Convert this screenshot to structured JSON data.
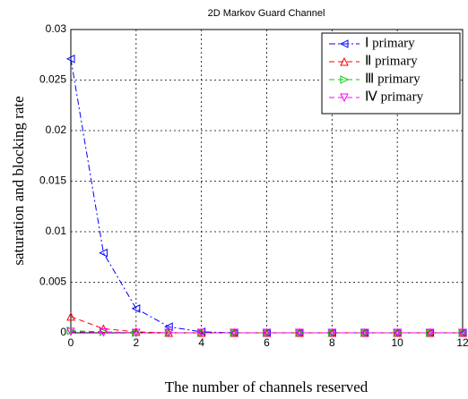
{
  "chart_data": {
    "type": "line",
    "title": "2D Markov Guard Channel",
    "xlabel": "The number of channels reserved",
    "ylabel": "saturation and blocking rate",
    "x": [
      0,
      1,
      2,
      3,
      4,
      5,
      6,
      7,
      8,
      9,
      10,
      11,
      12
    ],
    "series": [
      {
        "name": "Ⅰ primary",
        "color": "#0000ff",
        "marker": "left",
        "dash": "dashdot",
        "values": [
          0.0271,
          0.0079,
          0.0024,
          0.0006,
          0.0001,
          0,
          0,
          0,
          0,
          0,
          0,
          0,
          0
        ]
      },
      {
        "name": "Ⅱ primary",
        "color": "#ff0000",
        "marker": "up",
        "dash": "dashed",
        "values": [
          0.0016,
          0.0004,
          0.0001,
          0,
          0,
          0,
          0,
          0,
          0,
          0,
          0,
          0,
          0
        ]
      },
      {
        "name": "Ⅲ primary",
        "color": "#00cc00",
        "marker": "right",
        "dash": "dashed",
        "values": [
          0.0002,
          0.0001,
          0,
          0,
          0,
          0,
          0,
          0,
          0,
          0,
          0,
          0,
          0
        ]
      },
      {
        "name": "Ⅳ primary",
        "color": "#ff00ff",
        "marker": "down",
        "dash": "dashed",
        "values": [
          0.0001,
          5e-05,
          0,
          0,
          0,
          0,
          0,
          0,
          0,
          0,
          0,
          0,
          0
        ]
      }
    ],
    "xlim": [
      0,
      12
    ],
    "xticks": [
      0,
      2,
      4,
      6,
      8,
      10,
      12
    ],
    "ylim": [
      0,
      0.03
    ],
    "yticks": [
      0,
      0.005,
      0.01,
      0.015,
      0.02,
      0.025,
      0.03
    ],
    "grid": true,
    "legend": "upper right"
  }
}
